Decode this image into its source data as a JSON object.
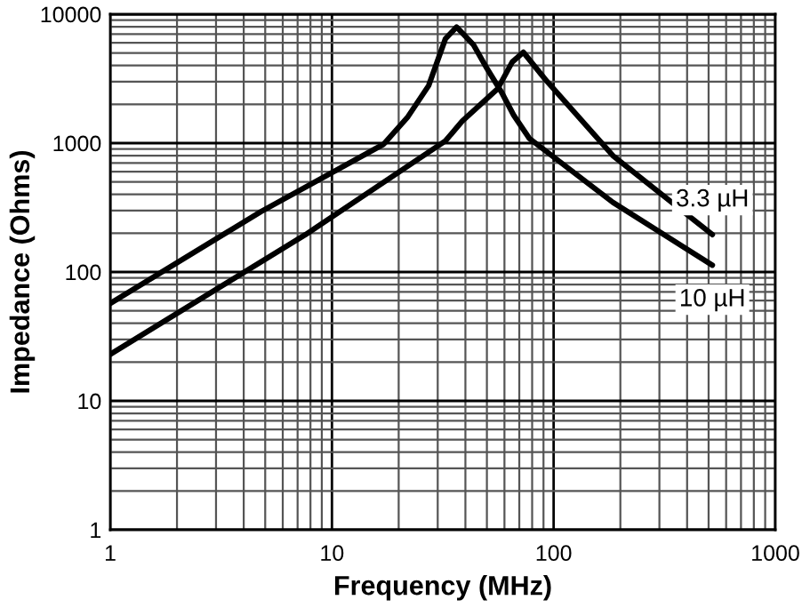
{
  "chart_data": {
    "type": "line",
    "xlabel": "Frequency (MHz)",
    "ylabel": "Impedance (Ohms)",
    "log": "xy",
    "grid": true,
    "marker": "none",
    "line_style": "solid",
    "xlim": [
      1,
      1000
    ],
    "ylim": [
      1,
      10000
    ],
    "xticks": [
      1,
      10,
      100,
      1000
    ],
    "yticks": [
      1,
      10,
      100,
      1000,
      10000
    ],
    "series": [
      {
        "name": "10 µH",
        "color": "#000000",
        "x": [
          1,
          4.8,
          17.1,
          22,
          27.3,
          32.5,
          36.5,
          43.4,
          50,
          58,
          66,
          77.6,
          185,
          520
        ],
        "values": [
          57,
          295,
          980,
          1600,
          2790,
          6450,
          7950,
          5820,
          3800,
          2510,
          1650,
          1090,
          347,
          113
        ]
      },
      {
        "name": "3.3 µH",
        "color": "#000000",
        "x": [
          1,
          7.6,
          32.5,
          38.7,
          56,
          65,
          73,
          92,
          185,
          520
        ],
        "values": [
          23,
          195,
          1040,
          1480,
          2650,
          4250,
          5070,
          3100,
          800,
          195
        ]
      }
    ]
  }
}
